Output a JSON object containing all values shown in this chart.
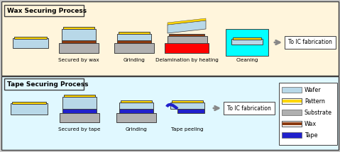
{
  "bg_top": "#FFF5DC",
  "bg_bottom": "#E0F8FF",
  "wafer_color": "#B8D8E8",
  "pattern_color": "#FFD700",
  "substrate_color": "#B0B0B0",
  "wax_color": "#8B3A10",
  "tape_color": "#2020CC",
  "red_color": "#FF0000",
  "cyan_color": "#00FFFF",
  "title_wax": "Wax Securing Process",
  "title_tape": "Tape Securing Process",
  "label1_wax": "Secured by wax",
  "label2_wax": "Grinding",
  "label3_wax": "Delamination by heating",
  "label4_wax": "Cleaning",
  "label1_tape": "Secured by tape",
  "label2_tape": "Grinding",
  "label3_tape": "Tape peeling",
  "to_ic": "To IC fabrication",
  "legend_labels": [
    "Wafer",
    "Pattern",
    "Substrate",
    "Wax",
    "Tape"
  ],
  "legend_colors": [
    "#B8D8E8",
    "#FFD700",
    "#B0B0B0",
    "#8B3A10",
    "#2020CC"
  ],
  "outer_bg": "#C8C8C8",
  "border_color": "#404040"
}
